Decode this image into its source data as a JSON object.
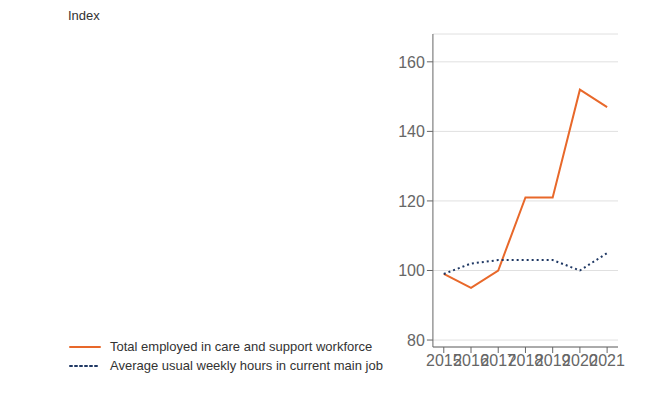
{
  "chart_data": {
    "type": "line",
    "ylabel": "Index",
    "x": [
      2015,
      2016,
      2017,
      2018,
      2019,
      2020,
      2021
    ],
    "series": [
      {
        "name": "Total employed in care and support workforce",
        "color": "#E8682A",
        "line_style": "solid",
        "values": [
          99,
          95,
          100,
          121,
          121,
          152,
          147
        ]
      },
      {
        "name": "Average usual weekly hours in current main job",
        "color": "#1F3864",
        "line_style": "dotted",
        "values": [
          99,
          102,
          103,
          103,
          103,
          100,
          105
        ]
      }
    ],
    "xlim": [
      2014.6,
      2021.4
    ],
    "xticks": [
      2015,
      2016,
      2017,
      2018,
      2019,
      2020,
      2021
    ],
    "ylim": [
      78,
      168
    ],
    "yticks": [
      80,
      100,
      120,
      140,
      160
    ],
    "grid": true,
    "legend": "bottom"
  }
}
